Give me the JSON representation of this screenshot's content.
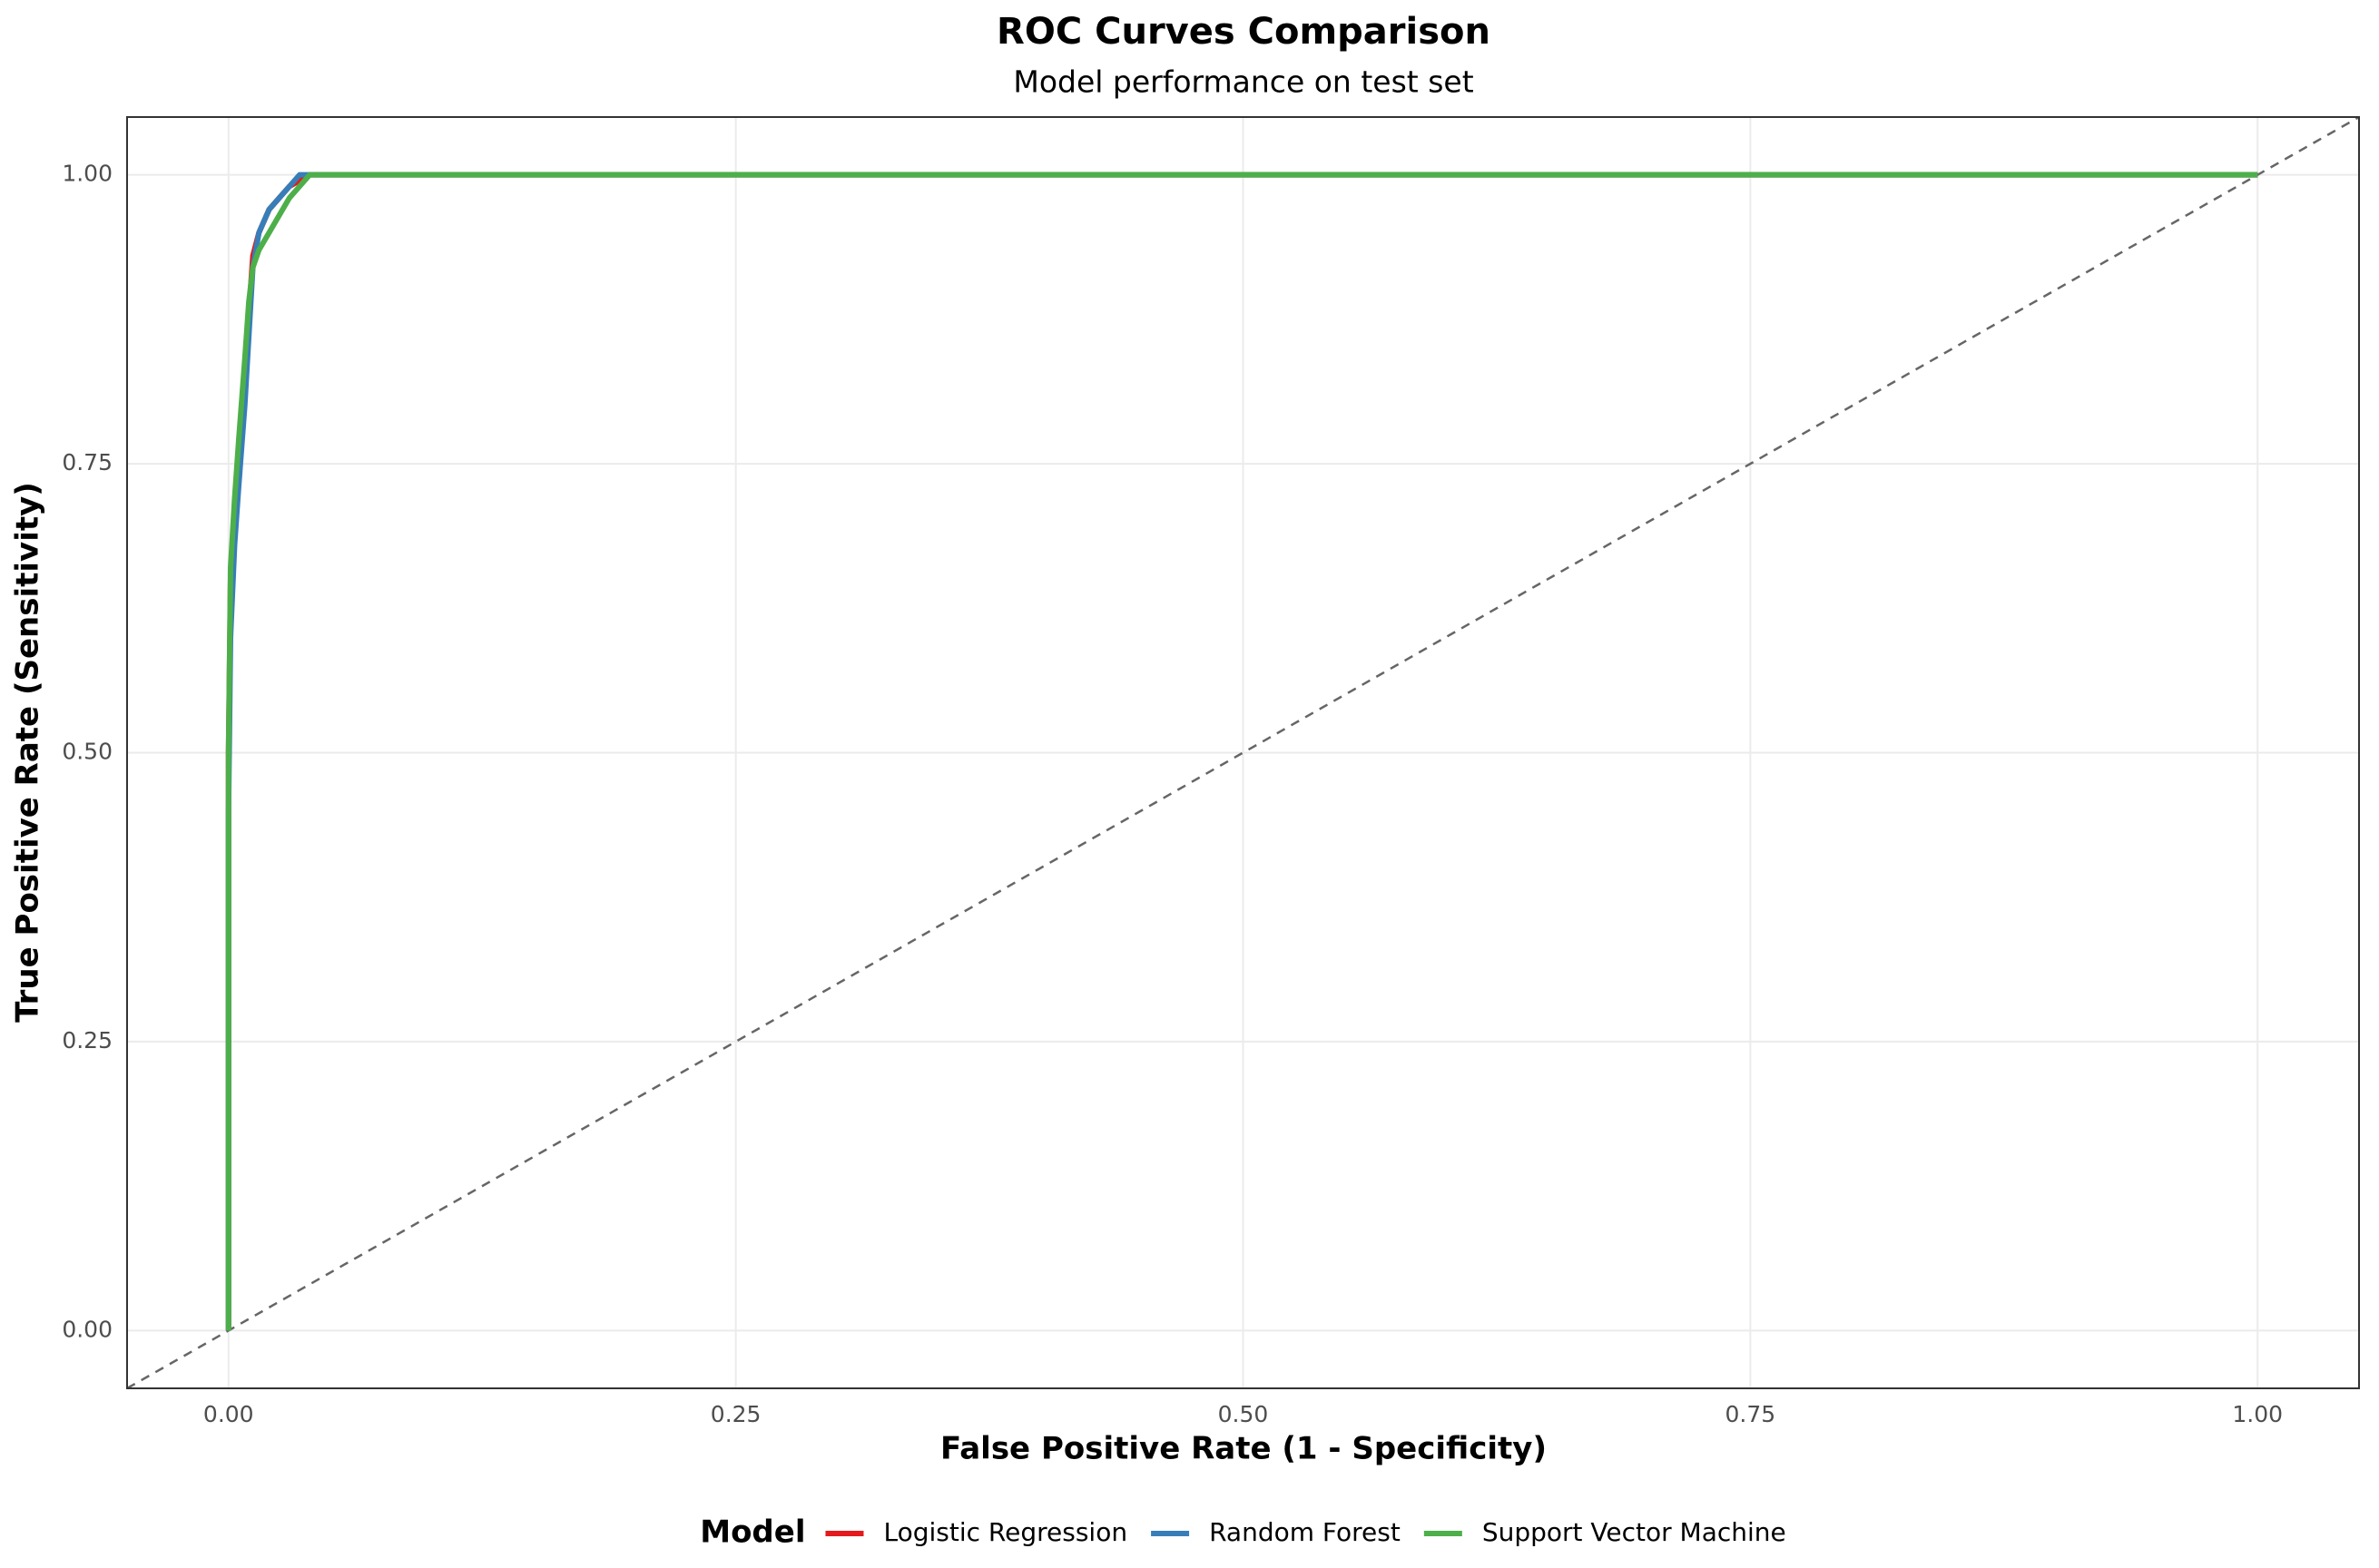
{
  "chart_data": {
    "type": "line",
    "title": "ROC Curves Comparison",
    "subtitle": "Model performance on test set",
    "x_label": "False Positive Rate (1 - Specificity)",
    "y_label": "True Positive Rate (Sensitivity)",
    "legend_title": "Model",
    "legend_position": "bottom",
    "grid": true,
    "x": [
      0,
      0,
      0.001,
      0.003,
      0.005,
      0.008,
      0.01,
      0.012,
      0.015,
      0.02,
      0.025,
      0.03,
      0.035,
      0.04,
      0.044,
      1.0
    ],
    "series": [
      {
        "name": "Logistic Regression",
        "color": "#e41a1c",
        "values": [
          0,
          0.5,
          0.65,
          0.7,
          0.75,
          0.82,
          0.88,
          0.93,
          0.95,
          0.97,
          0.98,
          0.99,
          0.995,
          1,
          1,
          1
        ]
      },
      {
        "name": "Random Forest",
        "color": "#377eb8",
        "values": [
          0,
          0.45,
          0.6,
          0.68,
          0.73,
          0.8,
          0.86,
          0.92,
          0.95,
          0.97,
          0.98,
          0.99,
          1,
          1,
          1,
          1
        ]
      },
      {
        "name": "Support Vector Machine",
        "color": "#4daf4a",
        "values": [
          0,
          0.5,
          0.66,
          0.72,
          0.77,
          0.84,
          0.89,
          0.92,
          0.935,
          0.95,
          0.965,
          0.98,
          0.99,
          1,
          1,
          1
        ]
      }
    ],
    "reference_line": {
      "slope": 1,
      "intercept": 0,
      "style": "dashed",
      "color": "#666666"
    },
    "xlim": [
      -0.05,
      1.05
    ],
    "ylim": [
      -0.05,
      1.05
    ],
    "xticks": [
      {
        "value": 0,
        "label": "0.00"
      },
      0.25,
      {
        "value": 0.5,
        "label": "0.50"
      },
      0.75,
      {
        "value": 1,
        "label": "1.00"
      }
    ],
    "yticks": [
      {
        "value": 0,
        "label": "0.00"
      },
      0.25,
      {
        "value": 0.5,
        "label": "0.50"
      },
      0.75,
      {
        "value": 1,
        "label": "1.00"
      }
    ]
  }
}
